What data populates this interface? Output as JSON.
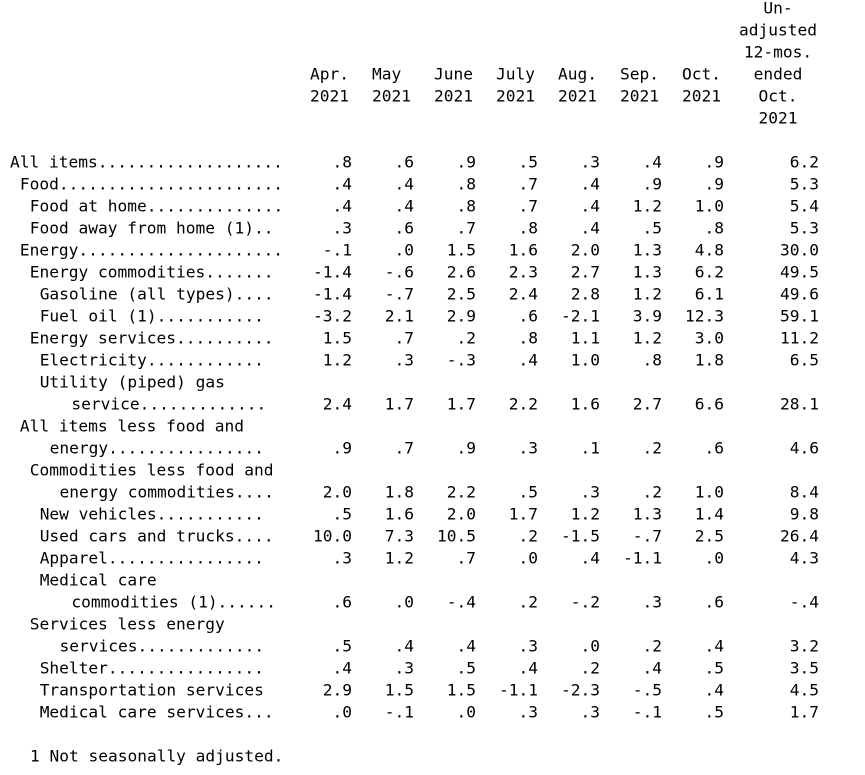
{
  "table": {
    "columns": [
      {
        "lines": [
          "Apr.",
          "2021"
        ]
      },
      {
        "lines": [
          "May",
          "2021"
        ]
      },
      {
        "lines": [
          "June",
          "2021"
        ]
      },
      {
        "lines": [
          "July",
          "2021"
        ]
      },
      {
        "lines": [
          "Aug.",
          "2021"
        ]
      },
      {
        "lines": [
          "Sep.",
          "2021"
        ]
      },
      {
        "lines": [
          "Oct.",
          "2021"
        ]
      },
      {
        "lines": [
          "Un-",
          "adjusted",
          "12-mos.",
          "ended",
          "Oct.",
          "2021"
        ]
      }
    ],
    "rows": [
      {
        "label": [
          "All items..................."
        ],
        "values": [
          ".8",
          ".6",
          ".9",
          ".5",
          ".3",
          ".4",
          ".9",
          "6.2"
        ]
      },
      {
        "label": [
          "Food......................."
        ],
        "values": [
          ".4",
          ".4",
          ".8",
          ".7",
          ".4",
          ".9",
          ".9",
          "5.3"
        ]
      },
      {
        "label": [
          "Food at home.............."
        ],
        "values": [
          ".4",
          ".4",
          ".8",
          ".7",
          ".4",
          "1.2",
          "1.0",
          "5.4"
        ]
      },
      {
        "label": [
          "Food away from home (1).."
        ],
        "values": [
          ".3",
          ".6",
          ".7",
          ".8",
          ".4",
          ".5",
          ".8",
          "5.3"
        ]
      },
      {
        "label": [
          "Energy....................."
        ],
        "values": [
          "-.1",
          ".0",
          "1.5",
          "1.6",
          "2.0",
          "1.3",
          "4.8",
          "30.0"
        ]
      },
      {
        "label": [
          "Energy commodities......."
        ],
        "values": [
          "-1.4",
          "-.6",
          "2.6",
          "2.3",
          "2.7",
          "1.3",
          "6.2",
          "49.5"
        ]
      },
      {
        "label": [
          "Gasoline (all types)...."
        ],
        "values": [
          "-1.4",
          "-.7",
          "2.5",
          "2.4",
          "2.8",
          "1.2",
          "6.1",
          "49.6"
        ]
      },
      {
        "label": [
          "Fuel oil (1)..........."
        ],
        "values": [
          "-3.2",
          "2.1",
          "2.9",
          ".6",
          "-2.1",
          "3.9",
          "12.3",
          "59.1"
        ]
      },
      {
        "label": [
          "Energy services.........."
        ],
        "values": [
          "1.5",
          ".7",
          ".2",
          ".8",
          "1.1",
          "1.2",
          "3.0",
          "11.2"
        ]
      },
      {
        "label": [
          "Electricity............"
        ],
        "values": [
          "1.2",
          ".3",
          "-.3",
          ".4",
          "1.0",
          ".8",
          "1.8",
          "6.5"
        ]
      },
      {
        "label": [
          "Utility (piped) gas",
          "service............."
        ],
        "values": [
          "2.4",
          "1.7",
          "1.7",
          "2.2",
          "1.6",
          "2.7",
          "6.6",
          "28.1"
        ]
      },
      {
        "label": [
          "All items less food and",
          "energy................"
        ],
        "values": [
          ".9",
          ".7",
          ".9",
          ".3",
          ".1",
          ".2",
          ".6",
          "4.6"
        ]
      },
      {
        "label": [
          "Commodities less food and",
          "energy commodities...."
        ],
        "values": [
          "2.0",
          "1.8",
          "2.2",
          ".5",
          ".3",
          ".2",
          "1.0",
          "8.4"
        ]
      },
      {
        "label": [
          "New vehicles..........."
        ],
        "values": [
          ".5",
          "1.6",
          "2.0",
          "1.7",
          "1.2",
          "1.3",
          "1.4",
          "9.8"
        ]
      },
      {
        "label": [
          "Used cars and trucks...."
        ],
        "values": [
          "10.0",
          "7.3",
          "10.5",
          ".2",
          "-1.5",
          "-.7",
          "2.5",
          "26.4"
        ]
      },
      {
        "label": [
          "Apparel................"
        ],
        "values": [
          ".3",
          "1.2",
          ".7",
          ".0",
          ".4",
          "-1.1",
          ".0",
          "4.3"
        ]
      },
      {
        "label": [
          "Medical care",
          "commodities (1)......"
        ],
        "values": [
          ".6",
          ".0",
          "-.4",
          ".2",
          "-.2",
          ".3",
          ".6",
          "-.4"
        ]
      },
      {
        "label": [
          "Services less energy",
          "services............."
        ],
        "values": [
          ".5",
          ".4",
          ".4",
          ".3",
          ".0",
          ".2",
          ".4",
          "3.2"
        ]
      },
      {
        "label": [
          "Shelter................"
        ],
        "values": [
          ".4",
          ".3",
          ".5",
          ".4",
          ".2",
          ".4",
          ".5",
          "3.5"
        ]
      },
      {
        "label": [
          "Transportation services"
        ],
        "values": [
          "2.9",
          "1.5",
          "1.5",
          "-1.1",
          "-2.3",
          "-.5",
          ".4",
          "4.5"
        ]
      },
      {
        "label": [
          "Medical care services..."
        ],
        "values": [
          ".0",
          "-.1",
          ".0",
          ".3",
          ".3",
          "-.1",
          ".5",
          "1.7"
        ]
      }
    ],
    "footnote": "1 Not seasonally adjusted."
  }
}
